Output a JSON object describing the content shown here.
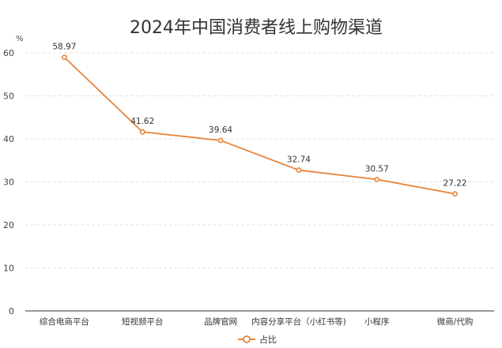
{
  "chart_data": {
    "type": "line",
    "title": "2024年中国消费者线上购物渠道",
    "y_unit": "%",
    "categories": [
      "综合电商平台",
      "短视频平台",
      "品牌官网",
      "内容分享平台（小红书等)",
      "小程序",
      "微商/代购"
    ],
    "series": [
      {
        "name": "占比",
        "values": [
          58.97,
          41.62,
          39.64,
          32.74,
          30.57,
          27.22
        ],
        "color": "#E8833A"
      }
    ],
    "ylim": [
      0,
      60
    ],
    "yticks": [
      0,
      10,
      20,
      30,
      40,
      50,
      60
    ],
    "grid": true,
    "legend": "bottom-center"
  }
}
